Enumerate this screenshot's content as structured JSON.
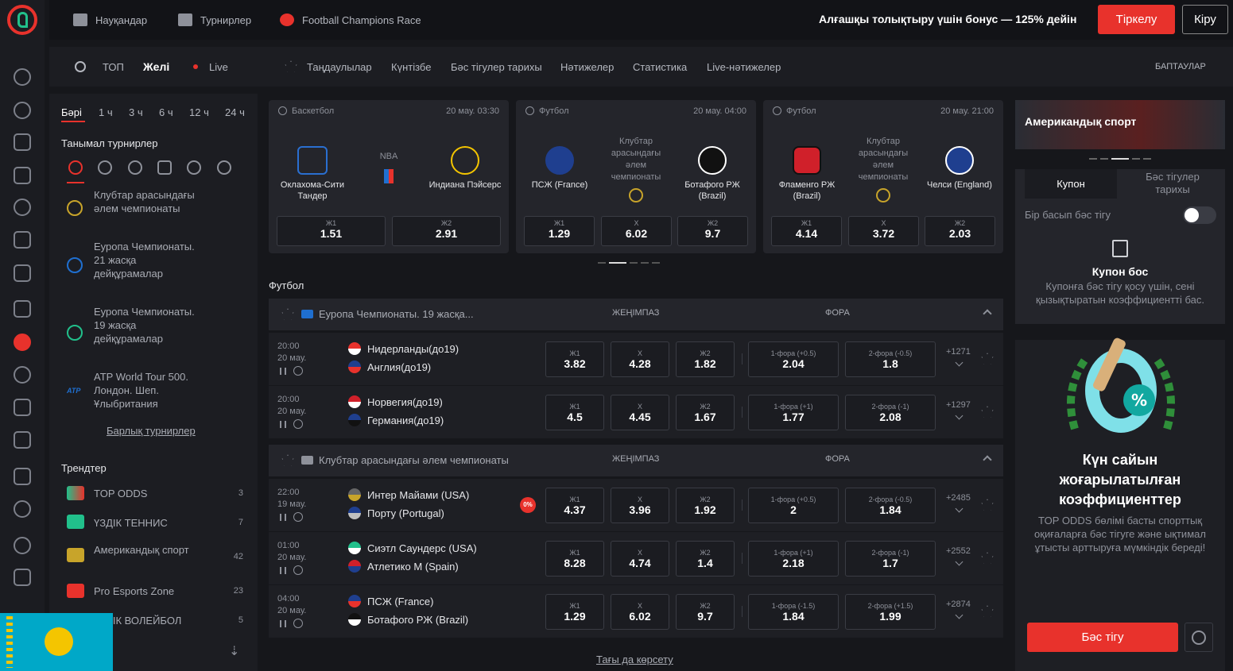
{
  "colors": {
    "accent": "#e8322c",
    "bg": "#16171b",
    "panel": "#24252b"
  },
  "topbar": {
    "promotions": "Науқандар",
    "tournaments": "Турнирлер",
    "race": "Football Champions Race",
    "promo": "Алғашқы толықтыру үшін бонус — 125% дейін",
    "register": "Тіркелу",
    "login": "Кіру"
  },
  "subbar": {
    "top": "ТОП",
    "line": "Желі",
    "live": "Live",
    "favorites": "Таңдаулылар",
    "calendar": "Күнтізбе",
    "history": "Бәс тігулер тарихы",
    "results": "Нәтижелер",
    "stats": "Статистика",
    "live_results": "Live-нәтижелер",
    "settings": "БАПТАУЛАР"
  },
  "sidebar": {
    "time_filters": [
      "Бәрі",
      "1 ч",
      "3 ч",
      "6 ч",
      "12 ч",
      "24 ч"
    ],
    "popular_title": "Танымал турнирлер",
    "tournaments": [
      "Клубтар арасындағы әлем чемпионаты",
      "Еуропа Чемпионаты. 21 жасқа дейқұрамалар",
      "Еуропа Чемпионаты. 19 жасқа дейқұрамалар",
      "ATP World Tour 500. Лондон. Шеп. Ұлыбритания"
    ],
    "all_tournaments": "Барлық турнирлер",
    "trends_title": "Трендтер",
    "trends": [
      {
        "name": "TOP ODDS",
        "count": "3"
      },
      {
        "name": "ҮЗДІК ТЕННИС",
        "count": "7"
      },
      {
        "name": "Американдық спорт",
        "count": "42"
      },
      {
        "name": "Pro Esports Zone",
        "count": "23"
      },
      {
        "name": "ҮЗДІК ВОЛЕЙБОЛ",
        "count": "5"
      }
    ]
  },
  "cards": [
    {
      "sport": "Баскетбол",
      "date": "20 мау. 03:30",
      "home": "Оклахома-Сити Тандер",
      "away": "Индиана Пэйсерс",
      "middle": "NBA",
      "odds": [
        {
          "label": "Ж1",
          "value": "1.51"
        },
        {
          "label": "Ж2",
          "value": "2.91"
        }
      ]
    },
    {
      "sport": "Футбол",
      "date": "20 мау. 04:00",
      "home": "ПСЖ (France)",
      "away": "Ботафого РЖ (Brazil)",
      "middle": "Клубтар арасындағы әлем чемпионаты",
      "odds": [
        {
          "label": "Ж1",
          "value": "1.29"
        },
        {
          "label": "Х",
          "value": "6.02"
        },
        {
          "label": "Ж2",
          "value": "9.7"
        }
      ]
    },
    {
      "sport": "Футбол",
      "date": "20 мау. 21:00",
      "home": "Фламенго РЖ (Brazil)",
      "away": "Челси (England)",
      "middle": "Клубтар арасындағы әлем чемпионаты",
      "odds": [
        {
          "label": "Ж1",
          "value": "4.14"
        },
        {
          "label": "Х",
          "value": "3.72"
        },
        {
          "label": "Ж2",
          "value": "2.03"
        }
      ]
    }
  ],
  "football_title": "Футбол",
  "col_win": "ЖЕҢІМПАЗ",
  "col_handicap": "ФОРА",
  "leagues": [
    {
      "name": "Еуропа Чемпионаты. 19 жасқа...",
      "matches": [
        {
          "time": "20:00",
          "date": "20 мау.",
          "home": "Нидерланды(до19)",
          "away": "Англия(до19)",
          "w1": "3.82",
          "x": "4.28",
          "w2": "1.82",
          "h1l": "1-фора (+0.5)",
          "h1": "2.04",
          "h2l": "2-фора (-0.5)",
          "h2": "1.8",
          "more": "+1271"
        },
        {
          "time": "20:00",
          "date": "20 мау.",
          "home": "Норвегия(до19)",
          "away": "Германия(до19)",
          "w1": "4.5",
          "x": "4.45",
          "w2": "1.67",
          "h1l": "1-фора (+1)",
          "h1": "1.77",
          "h2l": "2-фора (-1)",
          "h2": "2.08",
          "more": "+1297"
        }
      ]
    },
    {
      "name": "Клубтар арасындағы әлем чемпионаты",
      "matches": [
        {
          "time": "22:00",
          "date": "19 мау.",
          "home": "Интер Майами (USA)",
          "away": "Порту (Portugal)",
          "w1": "4.37",
          "x": "3.96",
          "w2": "1.92",
          "h1l": "1-фора (+0.5)",
          "h1": "2",
          "h2l": "2-фора (-0.5)",
          "h2": "1.84",
          "more": "+2485",
          "badge": "0%"
        },
        {
          "time": "01:00",
          "date": "20 мау.",
          "home": "Сиэтл Саундерс (USA)",
          "away": "Атлетико М (Spain)",
          "w1": "8.28",
          "x": "4.74",
          "w2": "1.4",
          "h1l": "1-фора (+1)",
          "h1": "2.18",
          "h2l": "2-фора (-1)",
          "h2": "1.7",
          "more": "+2552"
        },
        {
          "time": "04:00",
          "date": "20 мау.",
          "home": "ПСЖ (France)",
          "away": "Ботафого РЖ (Brazil)",
          "w1": "1.29",
          "x": "6.02",
          "w2": "9.7",
          "h1l": "1-фора (-1.5)",
          "h1": "1.84",
          "h2l": "2-фора (+1.5)",
          "h2": "1.99",
          "more": "+2874"
        }
      ]
    }
  ],
  "odds_labels": {
    "w1": "Ж1",
    "x": "Х",
    "w2": "Ж2"
  },
  "show_more": "Тағы да көрсету",
  "right": {
    "banner": "Американдық спорт",
    "tab_coupon": "Купон",
    "tab_history": "Бәс тігулер тарихы",
    "one_click": "Бір басып бәс тігу",
    "empty": "Купон бос",
    "hint": "Купонға бәс тігу қосу үшін, сені қызықтыратын коэффициентті бас.",
    "promo_title": "Күн сайын жоғарылатылған коэффициенттер",
    "promo_text": "TOP ODDS бөлімі басты спорттық оқиғаларға бәс тігуге және ықтимал ұтысты арттыруға мүмкіндік береді!",
    "promo_badge": "%",
    "bet": "Бәс тігу"
  }
}
